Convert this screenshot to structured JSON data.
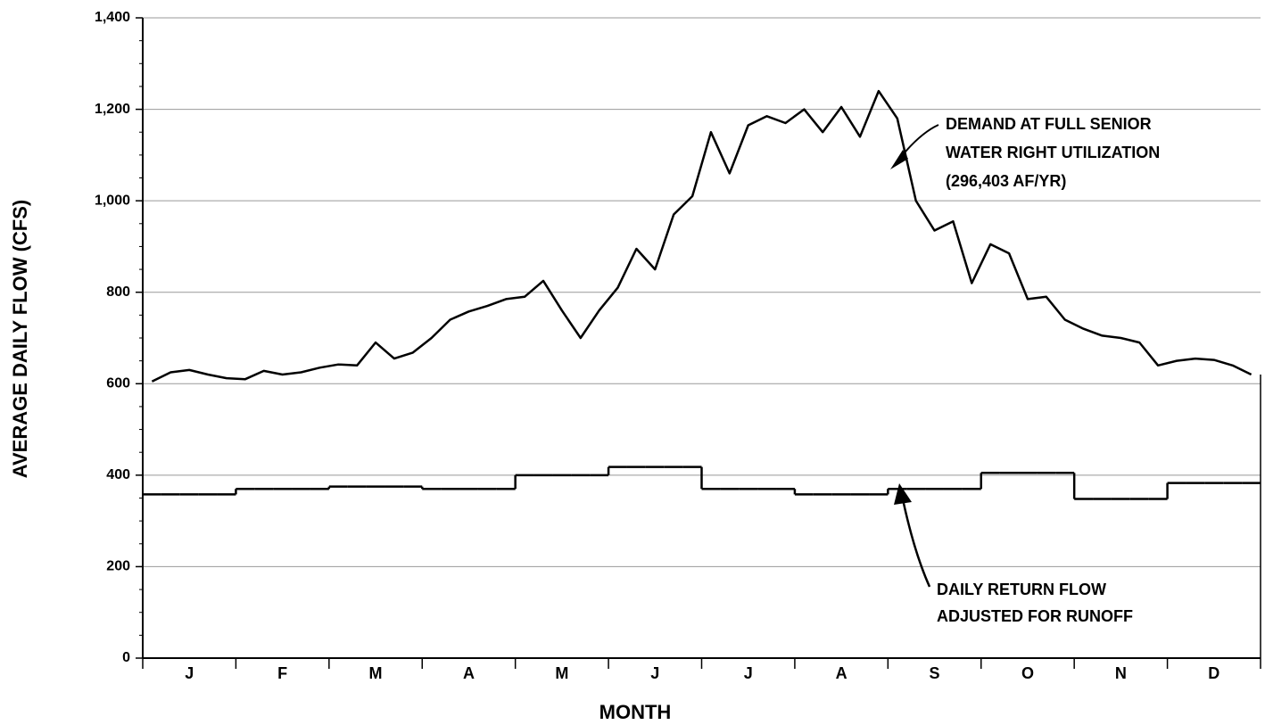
{
  "chart_data": {
    "type": "line",
    "y_label": "AVERAGE DAILY FLOW (CFS)",
    "x_label": "MONTH",
    "categories": [
      null,
      null,
      "J",
      null,
      null,
      null,
      null,
      "F",
      null,
      null,
      null,
      null,
      "M",
      null,
      null,
      null,
      null,
      "A",
      null,
      null,
      null,
      null,
      "M",
      null,
      null,
      null,
      null,
      "J",
      null,
      null,
      null,
      null,
      "J",
      null,
      null,
      null,
      null,
      "A",
      null,
      null,
      null,
      null,
      "S",
      null,
      null,
      null,
      null,
      "O",
      null,
      null,
      null,
      null,
      "N",
      null,
      null,
      null,
      null,
      "D",
      null,
      null
    ],
    "series": [
      {
        "color": "#000000",
        "style": "line",
        "values": [
          605,
          625,
          630,
          620,
          612,
          610,
          628,
          620,
          625,
          635,
          642,
          640,
          690,
          655,
          668,
          700,
          740,
          758,
          770,
          785,
          790,
          825,
          760,
          700,
          760,
          810,
          895,
          850,
          970,
          1010,
          1150,
          1060,
          1165,
          1185,
          1170,
          1200,
          1150,
          1205,
          1140,
          1240,
          1180,
          1000,
          935,
          955,
          820,
          905,
          885,
          785,
          790,
          740,
          720,
          705,
          700,
          690,
          640,
          650,
          655,
          652,
          640,
          620
        ]
      },
      {
        "color": "#000000",
        "style": "step",
        "values": [
          358,
          358,
          358,
          358,
          358,
          370,
          370,
          370,
          370,
          370,
          375,
          375,
          375,
          375,
          375,
          370,
          370,
          370,
          370,
          370,
          400,
          400,
          400,
          400,
          400,
          418,
          418,
          418,
          418,
          418,
          370,
          370,
          370,
          370,
          370,
          358,
          358,
          358,
          358,
          358,
          370,
          370,
          370,
          370,
          370,
          405,
          405,
          405,
          405,
          405,
          348,
          348,
          348,
          348,
          348,
          383,
          383,
          383,
          383,
          383
        ]
      }
    ],
    "ylim": [
      0,
      1400
    ],
    "yticks": [
      0,
      200,
      400,
      600,
      800,
      {
        "value": 1000,
        "label": "1,000"
      },
      {
        "value": 1200,
        "label": "1,200"
      },
      {
        "value": 1400,
        "label": "1,400"
      }
    ],
    "grid": true,
    "annotations": [
      {
        "lines": [
          "DEMAND AT FULL SENIOR",
          "WATER RIGHT UTILIZATION",
          "(296,403 AF/YR)"
        ]
      },
      {
        "lines": [
          "DAILY RETURN FLOW",
          "ADJUSTED FOR RUNOFF"
        ]
      }
    ]
  }
}
